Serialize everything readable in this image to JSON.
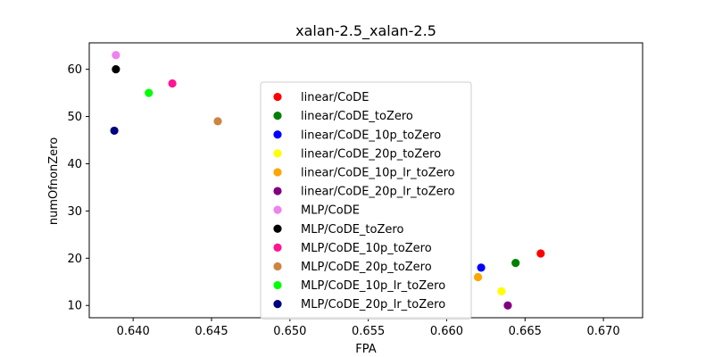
{
  "chart_data": {
    "type": "scatter",
    "title": "xalan-2.5_xalan-2.5",
    "xlabel": "FPA",
    "ylabel": "numOfnonZero",
    "xlim": [
      0.6372,
      0.6725
    ],
    "ylim": [
      7.4,
      65.6
    ],
    "xticks": [
      0.64,
      0.645,
      0.65,
      0.655,
      0.66,
      0.665,
      0.67
    ],
    "xtick_labels": [
      "0.640",
      "0.645",
      "0.650",
      "0.655",
      "0.660",
      "0.665",
      "0.670"
    ],
    "yticks": [
      10,
      20,
      30,
      40,
      50,
      60
    ],
    "ytick_labels": [
      "10",
      "20",
      "30",
      "40",
      "50",
      "60"
    ],
    "grid": false,
    "legend_position": "center",
    "series": [
      {
        "name": "linear/CoDE",
        "color": "#ff0000",
        "x": [
          0.666
        ],
        "y": [
          21
        ]
      },
      {
        "name": "linear/CoDE_toZero",
        "color": "#008000",
        "x": [
          0.6644
        ],
        "y": [
          19
        ]
      },
      {
        "name": "linear/CoDE_10p_toZero",
        "color": "#0000ff",
        "x": [
          0.6622
        ],
        "y": [
          18
        ]
      },
      {
        "name": "linear/CoDE_20p_toZero",
        "color": "#ffff00",
        "x": [
          0.6635
        ],
        "y": [
          13
        ]
      },
      {
        "name": "linear/CoDE_10p_lr_toZero",
        "color": "#ffa500",
        "x": [
          0.662
        ],
        "y": [
          16
        ]
      },
      {
        "name": "linear/CoDE_20p_lr_toZero",
        "color": "#800080",
        "x": [
          0.6639
        ],
        "y": [
          10
        ]
      },
      {
        "name": "MLP/CoDE",
        "color": "#ee82ee",
        "x": [
          0.6389
        ],
        "y": [
          63
        ]
      },
      {
        "name": "MLP/CoDE_toZero",
        "color": "#000000",
        "x": [
          0.6389
        ],
        "y": [
          60
        ]
      },
      {
        "name": "MLP/CoDE_10p_toZero",
        "color": "#ff1493",
        "x": [
          0.6425
        ],
        "y": [
          57
        ]
      },
      {
        "name": "MLP/CoDE_20p_toZero",
        "color": "#cd853f",
        "x": [
          0.6454
        ],
        "y": [
          49
        ]
      },
      {
        "name": "MLP/CoDE_10p_lr_toZero",
        "color": "#00ff00",
        "x": [
          0.641
        ],
        "y": [
          55
        ]
      },
      {
        "name": "MLP/CoDE_20p_lr_toZero",
        "color": "#000080",
        "x": [
          0.6388
        ],
        "y": [
          47
        ]
      }
    ]
  }
}
